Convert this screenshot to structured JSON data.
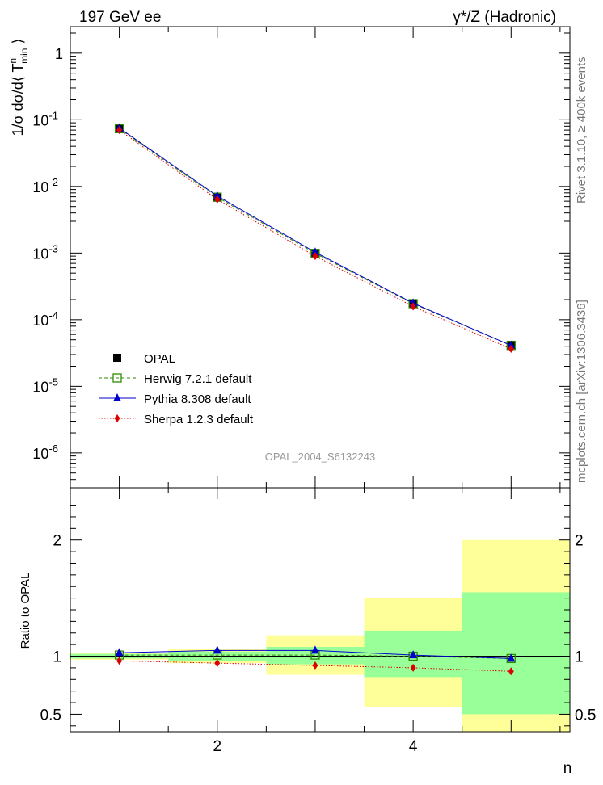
{
  "header": {
    "left": "197 GeV ee",
    "right": "γ*/Z (Hadronic)"
  },
  "side_labels": {
    "rivet": "Rivet 3.1.10, ≥ 400k events",
    "mcplots": "mcplots.cern.ch [arXiv:1306.3436]"
  },
  "watermark": "OPAL_2004_S6132243",
  "chart_data": [
    {
      "type": "scatter",
      "panel": "main",
      "ylabel": "1/σ dσ/d⟨ T^n_min ⟩",
      "yscale": "log",
      "ylim": [
        3e-07,
        2.5
      ],
      "xlim": [
        0.5,
        5.6
      ],
      "ytick_labels": [
        "10^-6",
        "10^-5",
        "10^-4",
        "10^-3",
        "10^-2",
        "10^-1",
        "1"
      ],
      "x": [
        1,
        2,
        3,
        4,
        5
      ],
      "legend_position": "lower-left",
      "series": [
        {
          "name": "OPAL",
          "color": "#000000",
          "marker": "square",
          "line": "none",
          "values": [
            0.073,
            0.0068,
            0.00098,
            0.000175,
            4.2e-05
          ]
        },
        {
          "name": "Herwig 7.2.1 default",
          "color": "#2e8b00",
          "marker": "open-square",
          "line": "dashed",
          "values": [
            0.0735,
            0.0069,
            0.00099,
            0.000174,
            4.1e-05
          ]
        },
        {
          "name": "Pythia 8.308 default",
          "color": "#0000cc",
          "marker": "triangle",
          "line": "solid",
          "values": [
            0.0752,
            0.0072,
            0.00103,
            0.000177,
            4.1e-05
          ]
        },
        {
          "name": "Sherpa 1.2.3 default",
          "color": "#dd0000",
          "marker": "diamond",
          "line": "dotted",
          "values": [
            0.07,
            0.0064,
            0.0009,
            0.000158,
            3.65e-05
          ]
        }
      ]
    },
    {
      "type": "scatter",
      "panel": "ratio",
      "xlabel": "n",
      "ylabel": "Ratio to OPAL",
      "ylim": [
        0.35,
        2.45
      ],
      "xlim": [
        0.5,
        5.6
      ],
      "ytick_labels": [
        "0.5",
        "1",
        "2"
      ],
      "xtick_labels": [
        "2",
        "4"
      ],
      "x": [
        1,
        2,
        3,
        4,
        5
      ],
      "bands": {
        "bin_edges": [
          0.5,
          1.5,
          2.5,
          3.5,
          4.5,
          5.6
        ],
        "stat_low": [
          0.98,
          0.96,
          0.93,
          0.82,
          0.5
        ],
        "stat_high": [
          1.02,
          1.04,
          1.08,
          1.22,
          1.55
        ],
        "total_low": [
          0.97,
          0.94,
          0.84,
          0.56,
          0.3
        ],
        "total_high": [
          1.03,
          1.06,
          1.18,
          1.5,
          2.0
        ],
        "stat_color": "#99ff99",
        "total_color": "#ffff99"
      },
      "series": [
        {
          "name": "Herwig 7.2.1 default",
          "color": "#2e8b00",
          "marker": "open-square",
          "line": "dashed",
          "values": [
            1.01,
            1.01,
            1.01,
            1.0,
            0.98
          ]
        },
        {
          "name": "Pythia 8.308 default",
          "color": "#0000cc",
          "marker": "triangle",
          "line": "solid",
          "values": [
            1.03,
            1.05,
            1.05,
            1.01,
            0.98
          ]
        },
        {
          "name": "Sherpa 1.2.3 default",
          "color": "#dd0000",
          "marker": "diamond",
          "line": "dotted",
          "values": [
            0.96,
            0.94,
            0.92,
            0.9,
            0.87
          ]
        }
      ]
    }
  ]
}
